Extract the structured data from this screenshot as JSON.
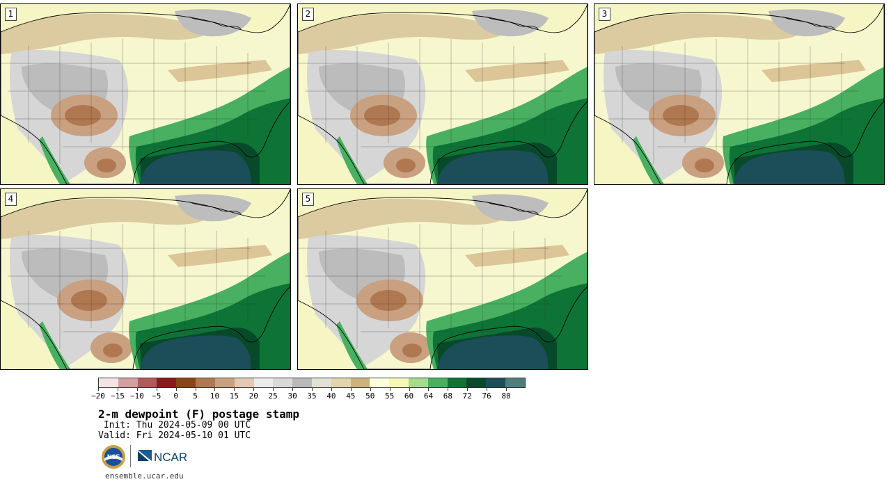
{
  "panels": [
    {
      "label": "1"
    },
    {
      "label": "2"
    },
    {
      "label": "3"
    },
    {
      "label": "4"
    },
    {
      "label": "5"
    }
  ],
  "colorbar": {
    "colors": [
      "#f3e5e5",
      "#d39f9f",
      "#b05a5a",
      "#8b1a1a",
      "#8b4513",
      "#b07850",
      "#c9a080",
      "#e3c8b3",
      "#ececec",
      "#d9d9d9",
      "#b9b9b9",
      "#e2e2d4",
      "#e2d4ac",
      "#cdb37a",
      "#fefedc",
      "#f8f8b5",
      "#a2dc8c",
      "#48b060",
      "#0d7436",
      "#074a2a",
      "#1c4e5a",
      "#4e7d7c"
    ],
    "tick_labels": [
      "−20",
      "−15",
      "−10",
      "−5",
      "0",
      "5",
      "10",
      "15",
      "20",
      "25",
      "30",
      "35",
      "40",
      "45",
      "50",
      "55",
      "60",
      "64",
      "68",
      "72",
      "76",
      "80"
    ]
  },
  "title": "2-m dewpoint (F) postage stamp",
  "init": " Init: Thu 2024-05-09 00 UTC",
  "valid": "Valid: Fri 2024-05-10 01 UTC",
  "logos": {
    "nsf_text": "NSF",
    "ncar_text": "NCAR"
  },
  "site": "ensemble.ucar.edu"
}
